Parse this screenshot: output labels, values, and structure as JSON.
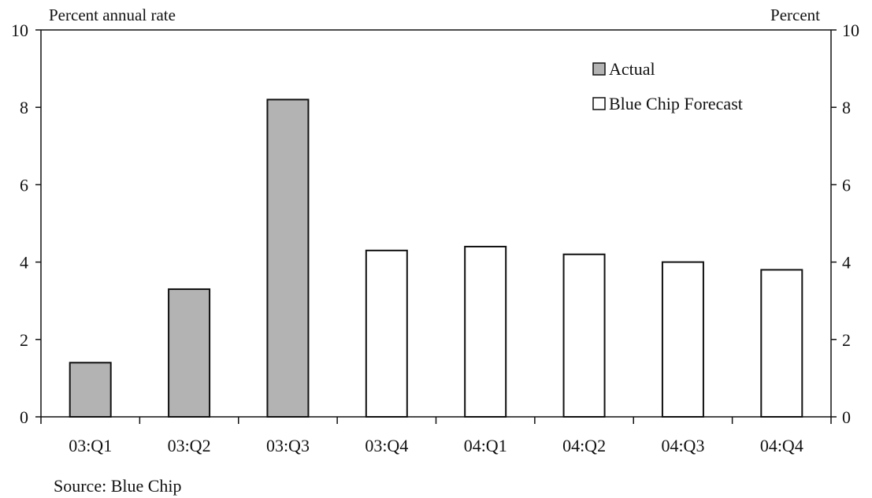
{
  "chart_data": {
    "type": "bar",
    "categories": [
      "03:Q1",
      "03:Q2",
      "03:Q3",
      "03:Q4",
      "04:Q1",
      "04:Q2",
      "04:Q3",
      "04:Q4"
    ],
    "series": [
      {
        "name": "Actual",
        "values": [
          1.4,
          3.3,
          8.2,
          null,
          null,
          null,
          null,
          null
        ],
        "color": "#b3b3b3"
      },
      {
        "name": "Blue Chip Forecast",
        "values": [
          null,
          null,
          null,
          4.3,
          4.4,
          4.2,
          4.0,
          3.8
        ],
        "color": "#ffffff"
      }
    ],
    "ylabel_left": "Percent annual rate",
    "ylabel_right": "Percent",
    "ylim": [
      0,
      10
    ],
    "yticks": [
      0,
      2,
      4,
      6,
      8,
      10
    ],
    "grid": false,
    "legend_placement": "top-right",
    "source": "Source: Blue Chip"
  }
}
